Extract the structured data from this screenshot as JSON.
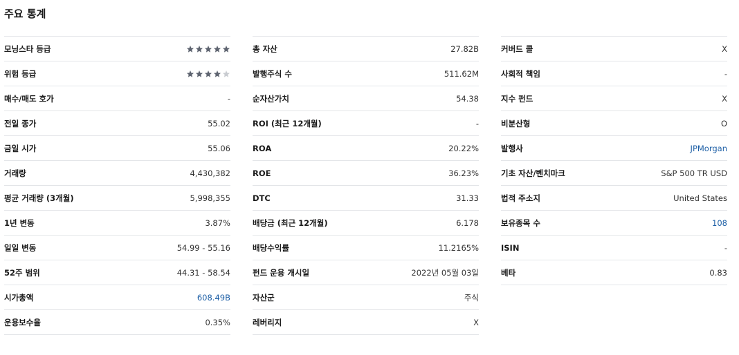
{
  "title": "주요 통계",
  "colors": {
    "star_filled": "#5e6470",
    "star_empty": "#c9ccd1",
    "link": "#1d5fa6",
    "divider": "#e3e5e8"
  },
  "col1": [
    {
      "label": "모닝스타 등급",
      "stars": 5,
      "max_stars": 5
    },
    {
      "label": "위험 등급",
      "stars": 4,
      "max_stars": 5
    },
    {
      "label": "매수/매도 호가",
      "value": "-"
    },
    {
      "label": "전일 종가",
      "value": "55.02"
    },
    {
      "label": "금일 시가",
      "value": "55.06"
    },
    {
      "label": "거래량",
      "value": "4,430,382"
    },
    {
      "label": "평균 거래량 (3개월)",
      "value": "5,998,355"
    },
    {
      "label": "1년 변동",
      "value": "3.87%"
    },
    {
      "label": "일일 변동",
      "value": "54.99 - 55.16"
    },
    {
      "label": "52주 범위",
      "value": "44.31 - 58.54"
    },
    {
      "label": "시가총액",
      "value": "608.49B",
      "link": true
    },
    {
      "label": "운용보수율",
      "value": "0.35%"
    }
  ],
  "col2": [
    {
      "label": "총 자산",
      "value": "27.82B"
    },
    {
      "label": "발행주식 수",
      "value": "511.62M"
    },
    {
      "label": "순자산가치",
      "value": "54.38"
    },
    {
      "label": "ROI (최근 12개월)",
      "value": "-"
    },
    {
      "label": "ROA",
      "value": "20.22%"
    },
    {
      "label": "ROE",
      "value": "36.23%"
    },
    {
      "label": "DTC",
      "value": "31.33"
    },
    {
      "label": "배당금 (최근 12개월)",
      "value": "6.178"
    },
    {
      "label": "배당수익률",
      "value": "11.2165%"
    },
    {
      "label": "펀드 운용 개시일",
      "value": "2022년 05월 03일"
    },
    {
      "label": "자산군",
      "value": "주식"
    },
    {
      "label": "레버리지",
      "value": "X"
    }
  ],
  "col3": [
    {
      "label": "커버드 콜",
      "value": "X"
    },
    {
      "label": "사회적 책임",
      "value": "-"
    },
    {
      "label": "지수 펀드",
      "value": "X"
    },
    {
      "label": "비분산형",
      "value": "O"
    },
    {
      "label": "발행사",
      "value": "JPMorgan",
      "link": true
    },
    {
      "label": "기초 자산/벤치마크",
      "value": "S&P 500 TR USD"
    },
    {
      "label": "법적 주소지",
      "value": "United States"
    },
    {
      "label": "보유종목 수",
      "value": "108",
      "link": true
    },
    {
      "label": "ISIN",
      "value": "-"
    },
    {
      "label": "베타",
      "value": "0.83"
    }
  ]
}
